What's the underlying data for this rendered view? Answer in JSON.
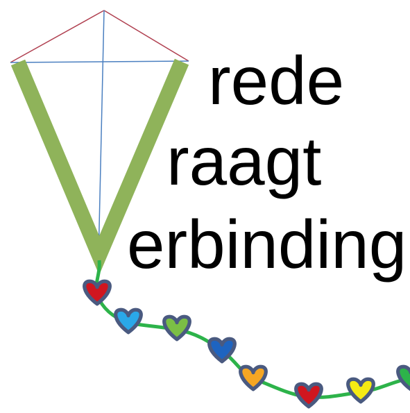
{
  "logo": {
    "lines": [
      "rede",
      "raagt",
      "erbinding"
    ]
  }
}
